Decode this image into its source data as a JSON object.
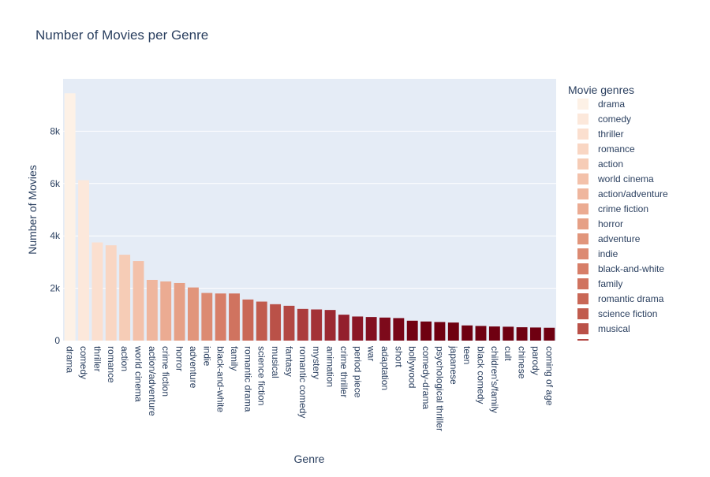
{
  "chart_data": {
    "type": "bar",
    "title": "Number of Movies per Genre",
    "xlabel": "Genre",
    "ylabel": "Number of Movies",
    "legend_title": "Movie genres",
    "legend_position": "right",
    "grid": true,
    "ylim": [
      0,
      10000
    ],
    "yticks": [
      {
        "value": 0,
        "label": "0"
      },
      {
        "value": 2000,
        "label": "2k"
      },
      {
        "value": 4000,
        "label": "4k"
      },
      {
        "value": 6000,
        "label": "6k"
      },
      {
        "value": 8000,
        "label": "8k"
      }
    ],
    "categories": [
      "drama",
      "comedy",
      "thriller",
      "romance",
      "action",
      "world cinema",
      "action/adventure",
      "crime fiction",
      "horror",
      "adventure",
      "indie",
      "black-and-white",
      "family",
      "romantic drama",
      "science fiction",
      "musical",
      "fantasy",
      "romantic comedy",
      "mystery",
      "animation",
      "crime thriller",
      "period piece",
      "war",
      "adaptation",
      "short",
      "bollywood",
      "comedy-drama",
      "psychological thriller",
      "japanese",
      "teen",
      "black comedy",
      "children's/family",
      "cult",
      "chinese",
      "parody",
      "coming of age"
    ],
    "values": [
      9450,
      6130,
      3750,
      3640,
      3280,
      3040,
      2320,
      2260,
      2200,
      2030,
      1820,
      1800,
      1800,
      1570,
      1490,
      1390,
      1330,
      1210,
      1190,
      1170,
      990,
      920,
      900,
      880,
      860,
      760,
      730,
      710,
      690,
      580,
      560,
      540,
      530,
      510,
      500,
      490
    ],
    "legend_visible": [
      "drama",
      "comedy",
      "thriller",
      "romance",
      "action",
      "world cinema",
      "action/adventure",
      "crime fiction",
      "horror",
      "adventure",
      "indie",
      "black-and-white",
      "family",
      "romantic drama",
      "science fiction",
      "musical"
    ],
    "colors": [
      "#fdf1e6",
      "#fce8db",
      "#fbdfcf",
      "#f9d6c3",
      "#f6ccb6",
      "#f3c1aa",
      "#efb69e",
      "#ebab92",
      "#e6a086",
      "#e1957b",
      "#dc8a72",
      "#d77e68",
      "#d0735f",
      "#c96756",
      "#c15c4e",
      "#ba5148",
      "#b24743",
      "#ab3c3d",
      "#a33237",
      "#9b2932",
      "#931f2d",
      "#8b1726",
      "#831020",
      "#7d0a1b",
      "#770517",
      "#720213",
      "#6f0011",
      "#6f0011",
      "#6f0011",
      "#6f0011",
      "#6f0011",
      "#6f0011",
      "#6f0011",
      "#6f0011",
      "#6f0011",
      "#6f0011"
    ],
    "plot_background": "#e5ecf6",
    "gridline_color": "#ffffff"
  }
}
